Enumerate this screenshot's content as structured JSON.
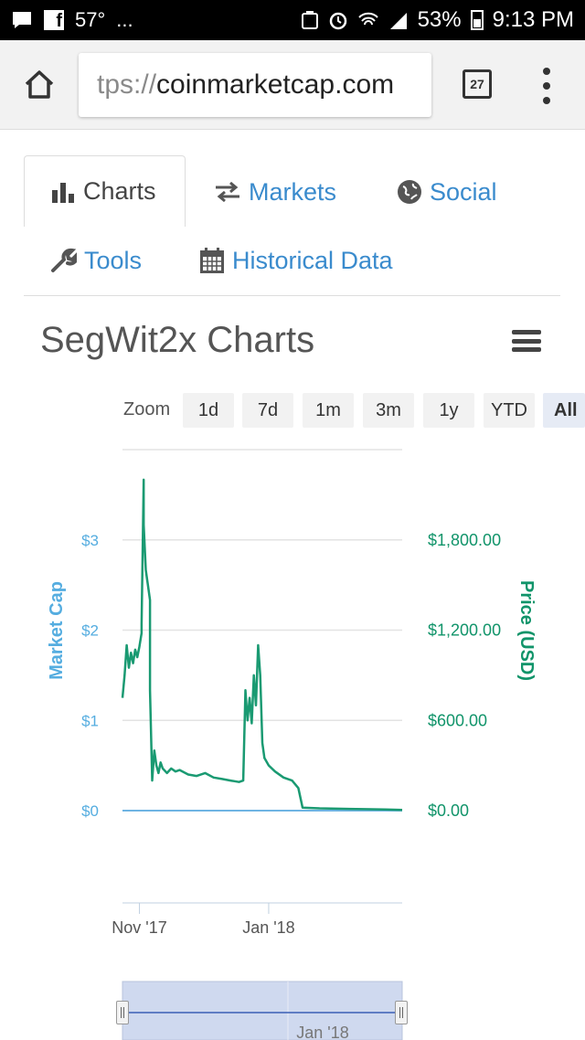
{
  "status_bar": {
    "temperature": "57°",
    "overflow": "...",
    "battery": "53%",
    "time": "9:13 PM"
  },
  "browser": {
    "url_scheme": "tps://",
    "url_host": "coinmarketcap.com",
    "tab_count": "27"
  },
  "nav": {
    "tabs": [
      {
        "label": "Charts",
        "icon": "bar-chart-icon",
        "active": true
      },
      {
        "label": "Markets",
        "icon": "exchange-arrows-icon",
        "active": false
      },
      {
        "label": "Social",
        "icon": "globe-icon",
        "active": false
      },
      {
        "label": "Tools",
        "icon": "wrench-icon",
        "active": false
      },
      {
        "label": "Historical Data",
        "icon": "calendar-icon",
        "active": false
      }
    ]
  },
  "chart_header": {
    "title": "SegWit2x Charts"
  },
  "zoom": {
    "label": "Zoom",
    "options": [
      "1d",
      "7d",
      "1m",
      "3m",
      "1y",
      "YTD",
      "All"
    ],
    "selected": "All"
  },
  "colors": {
    "price_line": "#1a9a72",
    "market_cap_line": "#6fb4e3",
    "market_cap_axis": "#55ade0",
    "price_axis": "#11946a",
    "link": "#3a8bcd",
    "navigator_fill": "#cfd9ef"
  },
  "chart_data": {
    "type": "line",
    "title": "SegWit2x Charts",
    "left_axis": {
      "label": "Market Cap",
      "ticks": [
        "$0",
        "$1",
        "$2",
        "$3"
      ],
      "range": [
        0,
        4
      ]
    },
    "right_axis": {
      "label": "Price (USD)",
      "ticks": [
        "$0.00",
        "$600.00",
        "$1,200.00",
        "$1,800.00"
      ],
      "range": [
        0,
        2400
      ]
    },
    "x_axis": {
      "ticks": [
        "Nov '17",
        "Jan '18"
      ],
      "range": [
        "2017-10-24",
        "2018-03-05"
      ]
    },
    "grid": true,
    "series": [
      {
        "name": "Price (USD)",
        "axis": "right",
        "points": [
          [
            "2017-10-24",
            750
          ],
          [
            "2017-10-25",
            900
          ],
          [
            "2017-10-26",
            1100
          ],
          [
            "2017-10-27",
            950
          ],
          [
            "2017-10-28",
            1050
          ],
          [
            "2017-10-29",
            980
          ],
          [
            "2017-10-30",
            1070
          ],
          [
            "2017-10-31",
            1020
          ],
          [
            "2017-11-01",
            1090
          ],
          [
            "2017-11-02",
            1180
          ],
          [
            "2017-11-02",
            1240
          ],
          [
            "2017-11-03",
            2200
          ],
          [
            "2017-11-03",
            1900
          ],
          [
            "2017-11-04",
            1600
          ],
          [
            "2017-11-05",
            1500
          ],
          [
            "2017-11-06",
            1400
          ],
          [
            "2017-11-06",
            800
          ],
          [
            "2017-11-07",
            200
          ],
          [
            "2017-11-08",
            400
          ],
          [
            "2017-11-09",
            300
          ],
          [
            "2017-11-10",
            250
          ],
          [
            "2017-11-11",
            320
          ],
          [
            "2017-11-12",
            280
          ],
          [
            "2017-11-14",
            250
          ],
          [
            "2017-11-16",
            280
          ],
          [
            "2017-11-18",
            260
          ],
          [
            "2017-11-20",
            270
          ],
          [
            "2017-11-24",
            240
          ],
          [
            "2017-11-28",
            230
          ],
          [
            "2017-12-02",
            250
          ],
          [
            "2017-12-06",
            220
          ],
          [
            "2017-12-10",
            210
          ],
          [
            "2017-12-14",
            200
          ],
          [
            "2017-12-18",
            190
          ],
          [
            "2017-12-20",
            200
          ],
          [
            "2017-12-21",
            800
          ],
          [
            "2017-12-22",
            600
          ],
          [
            "2017-12-23",
            750
          ],
          [
            "2017-12-24",
            580
          ],
          [
            "2017-12-25",
            900
          ],
          [
            "2017-12-26",
            700
          ],
          [
            "2017-12-27",
            1100
          ],
          [
            "2017-12-28",
            900
          ],
          [
            "2017-12-29",
            450
          ],
          [
            "2017-12-30",
            350
          ],
          [
            "2018-01-01",
            300
          ],
          [
            "2018-01-04",
            260
          ],
          [
            "2018-01-08",
            220
          ],
          [
            "2018-01-12",
            200
          ],
          [
            "2018-01-15",
            150
          ],
          [
            "2018-01-17",
            20
          ],
          [
            "2018-01-25",
            15
          ],
          [
            "2018-02-05",
            12
          ],
          [
            "2018-02-15",
            10
          ],
          [
            "2018-02-25",
            8
          ],
          [
            "2018-03-05",
            5
          ]
        ]
      },
      {
        "name": "Market Cap",
        "axis": "left",
        "points": [
          [
            "2017-10-24",
            0
          ],
          [
            "2018-03-05",
            0
          ]
        ]
      }
    ]
  },
  "navigator": {
    "tick": "Jan '18"
  }
}
